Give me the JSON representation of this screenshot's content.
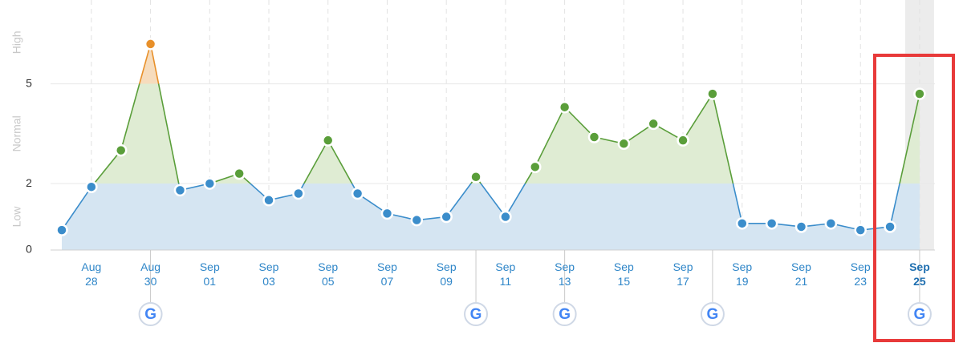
{
  "chart_data": {
    "type": "line",
    "categories": [
      null,
      "Aug 28",
      null,
      "Aug 30",
      null,
      "Sep 01",
      null,
      "Sep 03",
      null,
      "Sep 05",
      null,
      "Sep 07",
      null,
      "Sep 09",
      null,
      "Sep 11",
      null,
      "Sep 13",
      null,
      "Sep 15",
      null,
      "Sep 17",
      null,
      "Sep 19",
      null,
      "Sep 21",
      null,
      "Sep 23",
      null,
      "Sep 25"
    ],
    "series": [
      {
        "values": [
          0.6,
          1.9,
          3.0,
          6.2,
          1.8,
          2.0,
          2.3,
          1.5,
          1.7,
          3.3,
          1.7,
          1.1,
          0.9,
          1.0,
          2.2,
          1.0,
          2.5,
          4.3,
          3.4,
          3.2,
          3.8,
          3.3,
          4.7,
          0.8,
          0.8,
          0.7,
          0.8,
          0.6,
          0.7,
          4.7
        ]
      }
    ],
    "ylim": [
      0,
      7.5
    ],
    "yticks": [
      0,
      2,
      5
    ],
    "grid": true,
    "zones": [
      {
        "label": "Low",
        "from": 0,
        "to": 2,
        "color": "#3b8dcb",
        "fill": "#d5e5f2"
      },
      {
        "label": "Normal",
        "from": 2,
        "to": 5,
        "color": "#5a9e3a",
        "fill": "#dfecd3"
      },
      {
        "label": "High",
        "from": 5,
        "to": 7.5,
        "color": "#e8902a",
        "fill": "#f6dcbd"
      }
    ],
    "update_marker": "G",
    "google_update": [
      false,
      false,
      false,
      true,
      false,
      false,
      false,
      false,
      false,
      false,
      false,
      false,
      false,
      false,
      true,
      false,
      false,
      true,
      false,
      false,
      false,
      false,
      true,
      false,
      false,
      false,
      false,
      false,
      false,
      true
    ]
  }
}
